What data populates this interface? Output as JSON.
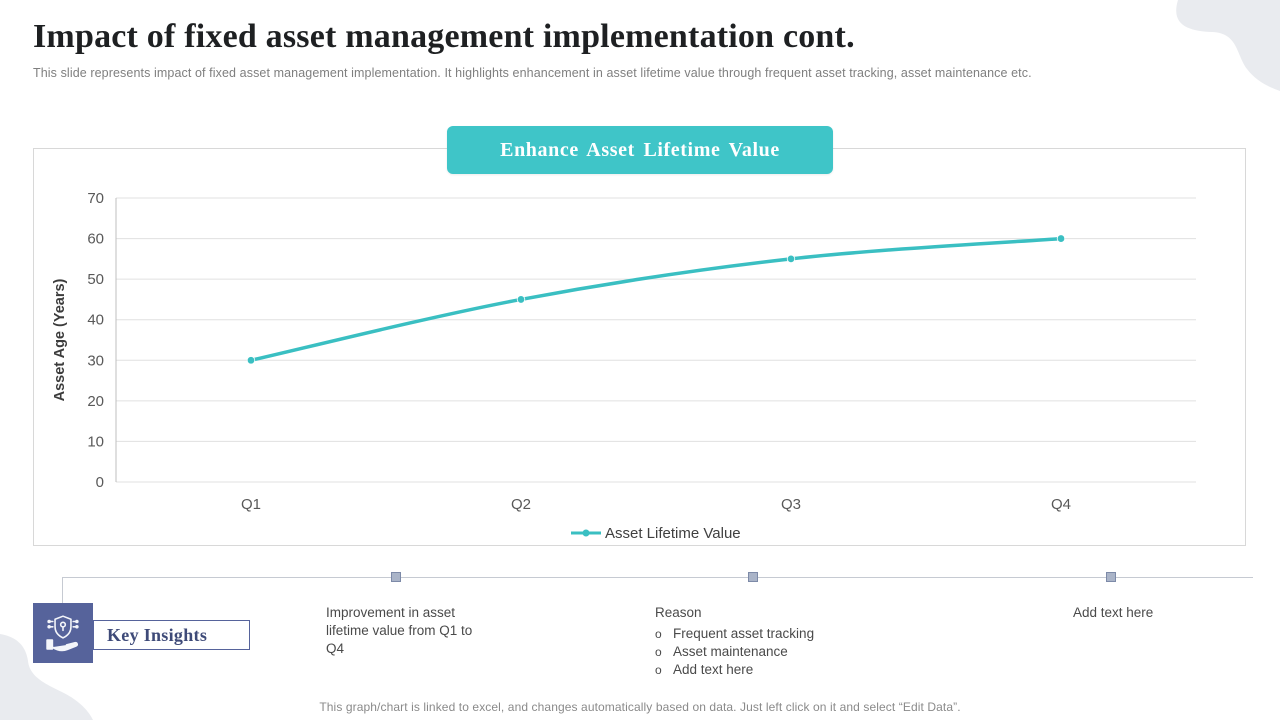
{
  "slide": {
    "title": "Impact of fixed asset management implementation cont.",
    "subtitle": "This slide represents impact of fixed asset management implementation. It highlights enhancement in asset lifetime value through frequent asset tracking, asset maintenance etc.",
    "footer": "This graph/chart is linked to excel,  and changes automatically based on data. Just left click on it and select “Edit Data”."
  },
  "badge": {
    "label": "Enhance Asset Lifetime Value"
  },
  "chart_data": {
    "type": "line",
    "title": "Enhance Asset Lifetime Value",
    "categories": [
      "Q1",
      "Q2",
      "Q3",
      "Q4"
    ],
    "series": [
      {
        "name": "Asset Lifetime Value",
        "values": [
          30,
          45,
          55,
          60
        ],
        "color": "#3abfc2"
      }
    ],
    "xlabel": "",
    "ylabel": "Asset Age (Years)",
    "ylim": [
      0,
      70
    ],
    "ytick_step": 10,
    "grid": true,
    "legend_position": "bottom"
  },
  "insights": {
    "label": "Key Insights",
    "icon": "hand-shield-icon",
    "bullet_char": "o",
    "items": [
      {
        "text": "Improvement in asset lifetime value from Q1 to Q4",
        "bullets": []
      },
      {
        "text": "Reason",
        "bullets": [
          "Frequent asset tracking",
          "Asset maintenance",
          "Add text here"
        ]
      },
      {
        "text": "Add text here",
        "bullets": []
      }
    ]
  },
  "colors": {
    "accent_teal": "#3fc5c8",
    "accent_blue": "#56639b",
    "blob_gray": "#e9ebef",
    "grid_line": "#e0e0e0",
    "axis_line": "#bfbfbf",
    "tick_text": "#595959"
  }
}
